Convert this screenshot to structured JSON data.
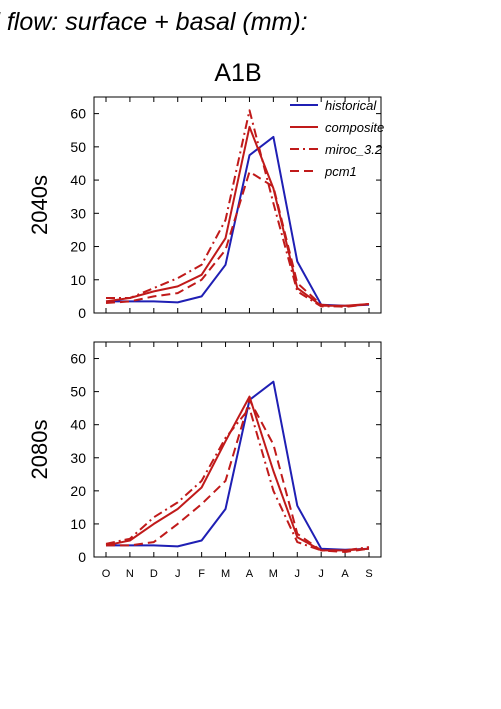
{
  "header": {
    "title": "d flow: surface + basal (mm):"
  },
  "chart_data": {
    "type": "line",
    "title": "A1B",
    "categories": [
      "O",
      "N",
      "D",
      "J",
      "F",
      "M",
      "A",
      "M",
      "J",
      "J",
      "A",
      "S"
    ],
    "ylim": [
      0,
      65
    ],
    "yticks": [
      0,
      10,
      20,
      30,
      40,
      50,
      60
    ],
    "grid": false,
    "legend_position": "top-right",
    "legend": [
      "historical",
      "composite",
      "miroc_3.2",
      "pcm1"
    ],
    "colors": {
      "historical": "#1f1fb4",
      "models": "#c01a1a"
    },
    "styles": {
      "historical": "solid",
      "composite": "solid",
      "miroc_3.2": "dashdot",
      "pcm1": "dash"
    },
    "panels": [
      {
        "ylabel": "2040s",
        "series": [
          {
            "name": "historical",
            "values": [
              3.5,
              3.5,
              3.5,
              3.2,
              5,
              14.5,
              47.5,
              53,
              15.5,
              2.5,
              2.2,
              2.5
            ]
          },
          {
            "name": "composite",
            "values": [
              3.5,
              4.5,
              6.5,
              8,
              11.5,
              22.5,
              56,
              37.5,
              7.5,
              2.2,
              2.2,
              2.7
            ]
          },
          {
            "name": "miroc_3.2",
            "values": [
              4.5,
              4.5,
              7.5,
              10.5,
              14.5,
              28,
              61,
              33,
              6.5,
              2,
              2,
              2.7
            ]
          },
          {
            "name": "pcm1",
            "values": [
              3,
              3.5,
              5,
              6,
              10,
              19,
              42.5,
              38,
              9,
              2.5,
              1.8,
              2.7
            ]
          }
        ]
      },
      {
        "ylabel": "2080s",
        "series": [
          {
            "name": "historical",
            "values": [
              3.5,
              3.5,
              3.5,
              3.2,
              5,
              14.5,
              47.5,
              53,
              15.5,
              2.5,
              2.2,
              2.5
            ]
          },
          {
            "name": "composite",
            "values": [
              3.5,
              5,
              10,
              14.5,
              21,
              35,
              48.5,
              26,
              6,
              2,
              2,
              2.5
            ]
          },
          {
            "name": "miroc_3.2",
            "values": [
              4,
              5.5,
              12,
              16.5,
              23,
              36,
              45,
              20,
              4.5,
              2,
              2,
              3
            ]
          },
          {
            "name": "pcm1",
            "values": [
              3.5,
              3.5,
              4.5,
              10,
              16,
              23,
              47.5,
              34,
              7,
              2,
              1.5,
              2.5
            ]
          }
        ]
      }
    ]
  }
}
